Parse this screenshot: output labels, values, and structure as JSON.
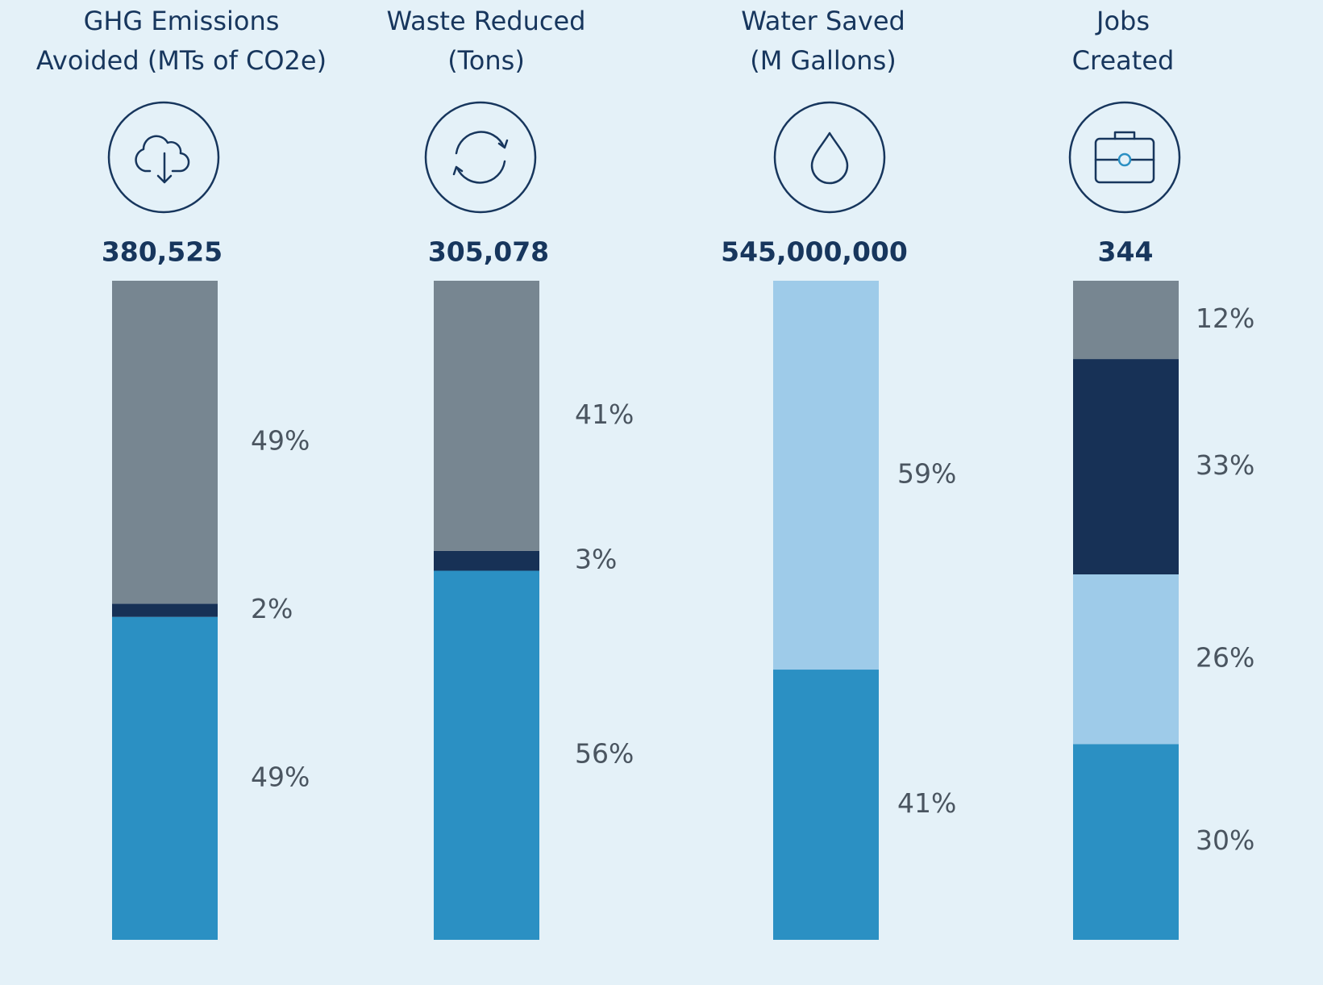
{
  "chart_data": [
    {
      "type": "stacked_bar",
      "title": [
        "GHG Emissions",
        "Avoided (MTs of CO2e)"
      ],
      "total": {
        "value": 380525,
        "label": "380,525"
      },
      "ylim": [
        0,
        100
      ],
      "series": [
        {
          "color": "#2b90c3",
          "values": [
            49
          ],
          "value_labels": [
            "49%"
          ]
        },
        {
          "color": "#173156",
          "values": [
            2
          ],
          "value_labels": [
            "2%"
          ]
        },
        {
          "color": "#778691",
          "values": [
            49
          ],
          "value_labels": [
            "49%"
          ]
        }
      ]
    },
    {
      "type": "stacked_bar",
      "title": [
        "Waste Reduced",
        "(Tons)"
      ],
      "total": {
        "value": 305078,
        "label": "305,078"
      },
      "ylim": [
        0,
        100
      ],
      "series": [
        {
          "color": "#2b90c3",
          "values": [
            56
          ],
          "value_labels": [
            "56%"
          ]
        },
        {
          "color": "#173156",
          "values": [
            3
          ],
          "value_labels": [
            "3%"
          ]
        },
        {
          "color": "#778691",
          "values": [
            41
          ],
          "value_labels": [
            "41%"
          ]
        }
      ]
    },
    {
      "type": "stacked_bar",
      "title": [
        "Water Saved",
        "(M Gallons)"
      ],
      "total": {
        "value": 545000000,
        "label": "545,000,000"
      },
      "ylim": [
        0,
        100
      ],
      "series": [
        {
          "color": "#2b90c3",
          "values": [
            41
          ],
          "value_labels": [
            "41%"
          ]
        },
        {
          "color": "#9ecbe9",
          "values": [
            59
          ],
          "value_labels": [
            "59%"
          ]
        }
      ]
    },
    {
      "type": "stacked_bar",
      "title": [
        "Jobs",
        "Created"
      ],
      "total": {
        "value": 344,
        "label": "344"
      },
      "ylim": [
        0,
        101
      ],
      "series": [
        {
          "color": "#2b90c3",
          "values": [
            30
          ],
          "value_labels": [
            "30%"
          ]
        },
        {
          "color": "#9ecbe9",
          "values": [
            26
          ],
          "value_labels": [
            "26%"
          ]
        },
        {
          "color": "#173156",
          "values": [
            33
          ],
          "value_labels": [
            "33%"
          ]
        },
        {
          "color": "#778691",
          "values": [
            12
          ],
          "value_labels": [
            "12%"
          ]
        }
      ]
    }
  ]
}
